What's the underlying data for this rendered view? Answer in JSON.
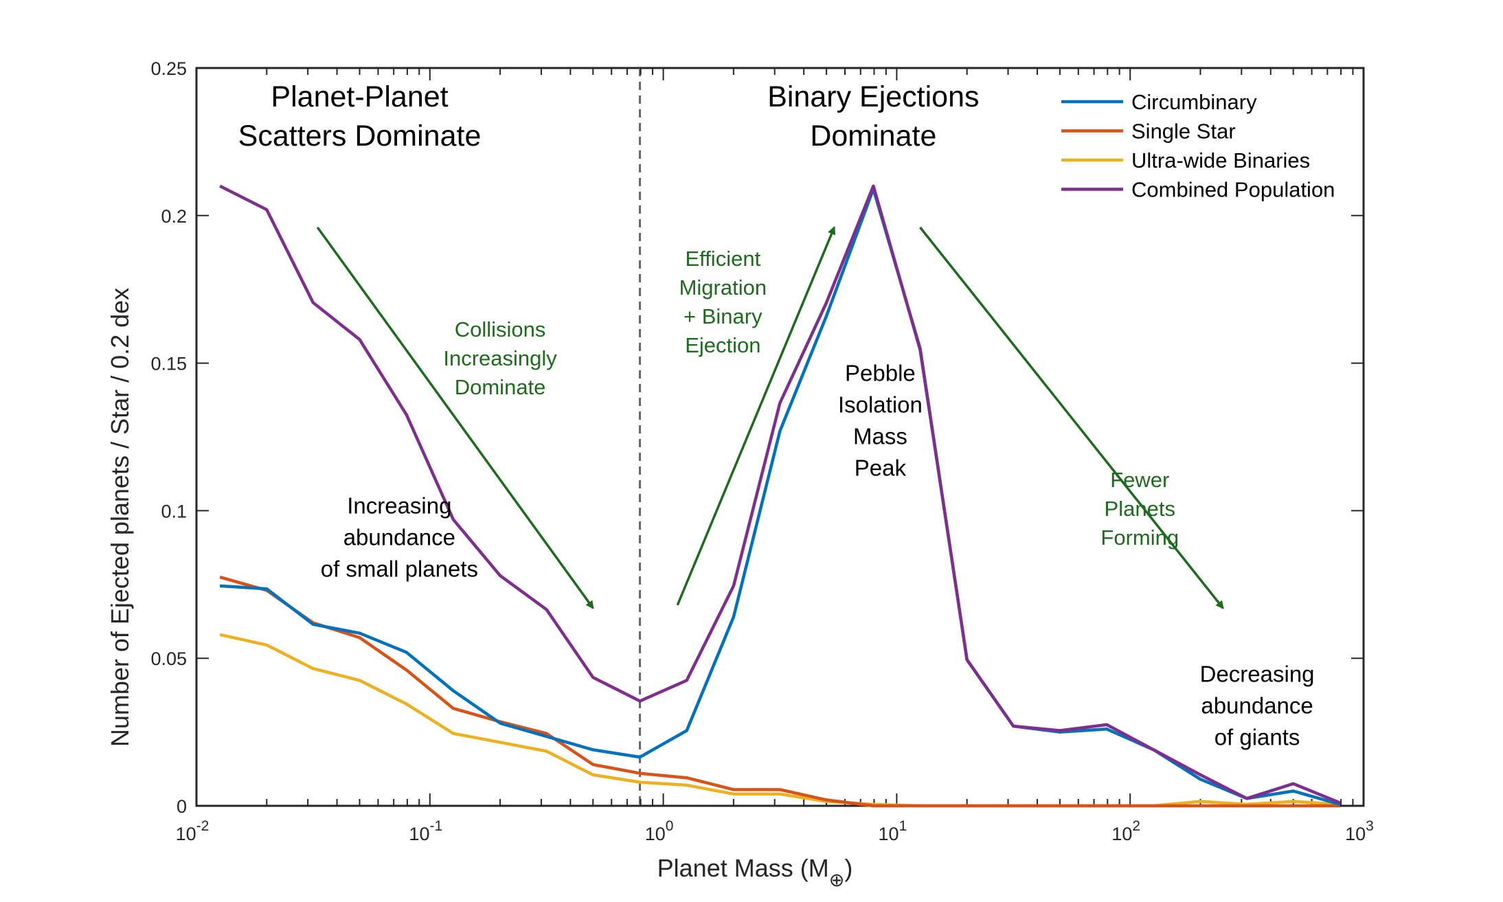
{
  "chart_data": {
    "type": "line",
    "xscale": "log",
    "xlim": [
      0.01,
      1000
    ],
    "ylim": [
      0,
      0.25
    ],
    "xlabel": "Planet Mass (M",
    "xlabel_subscript": "⊕",
    "xlabel_close": ")",
    "ylabel": "Number of Ejected planets / Star / 0.2 dex",
    "yticks": [
      {
        "value": 0,
        "label": "0"
      },
      {
        "value": 0.05,
        "label": "0.05"
      },
      {
        "value": 0.1,
        "label": "0.1"
      },
      {
        "value": 0.15,
        "label": "0.15"
      },
      {
        "value": 0.2,
        "label": "0.2"
      },
      {
        "value": 0.25,
        "label": "0.25"
      }
    ],
    "xticks": [
      {
        "value": 0.01,
        "base": "10",
        "exp": "-2"
      },
      {
        "value": 0.1,
        "base": "10",
        "exp": "-1"
      },
      {
        "value": 1,
        "base": "10",
        "exp": "0"
      },
      {
        "value": 10,
        "base": "10",
        "exp": "1"
      },
      {
        "value": 100,
        "base": "10",
        "exp": "2"
      },
      {
        "value": 1000,
        "base": "10",
        "exp": "3"
      }
    ],
    "x": [
      0.0126,
      0.02,
      0.0316,
      0.05,
      0.0794,
      0.126,
      0.2,
      0.316,
      0.5,
      0.794,
      1.26,
      2.0,
      3.16,
      5.0,
      7.94,
      12.6,
      20.0,
      31.6,
      50.0,
      79.4,
      126,
      200,
      316,
      500,
      794
    ],
    "series": [
      {
        "name": "Circumbinary",
        "color": "#0072BD",
        "values": [
          0.0745,
          0.0735,
          0.0615,
          0.0585,
          0.052,
          0.039,
          0.028,
          0.0235,
          0.019,
          0.0165,
          0.0255,
          0.064,
          0.127,
          0.166,
          0.209,
          0.155,
          0.0495,
          0.027,
          0.025,
          0.026,
          0.019,
          0.009,
          0.0025,
          0.005,
          0.0005
        ]
      },
      {
        "name": "Single Star",
        "color": "#D95319",
        "values": [
          0.0775,
          0.073,
          0.062,
          0.057,
          0.046,
          0.033,
          0.0285,
          0.0245,
          0.014,
          0.011,
          0.0095,
          0.0055,
          0.0055,
          0.002,
          0.0,
          0.0,
          0.0,
          0.0,
          0.0,
          0.0,
          0.0,
          0.0,
          0.0,
          0.0,
          0.0
        ]
      },
      {
        "name": "Ultra-wide Binaries",
        "color": "#EDB120",
        "values": [
          0.058,
          0.0545,
          0.0465,
          0.0425,
          0.0345,
          0.0245,
          0.0215,
          0.0185,
          0.0105,
          0.008,
          0.007,
          0.004,
          0.004,
          0.0015,
          0.0005,
          0.0,
          0.0,
          0.0,
          0.0,
          0.0,
          0.0,
          0.0015,
          0.0005,
          0.0015,
          0.0005
        ]
      },
      {
        "name": "Combined Population",
        "color": "#7E2F8E",
        "values": [
          0.21,
          0.202,
          0.1705,
          0.158,
          0.1325,
          0.097,
          0.078,
          0.0665,
          0.0435,
          0.0355,
          0.0425,
          0.0745,
          0.1365,
          0.1705,
          0.21,
          0.1545,
          0.0495,
          0.027,
          0.0255,
          0.0275,
          0.019,
          0.0105,
          0.0025,
          0.0075,
          0.001
        ]
      }
    ],
    "divider_x": 0.794,
    "legend_position": "top-right",
    "headings": [
      {
        "lines": [
          "Planet-Planet",
          "Scatters Dominate"
        ],
        "x": 0.05,
        "y": 0.237
      },
      {
        "lines": [
          "Binary Ejections",
          "Dominate"
        ],
        "x": 7.94,
        "y": 0.237
      }
    ],
    "annotations": [
      {
        "lines": [
          "Increasing",
          "abundance",
          "of small planets"
        ],
        "x": 0.074,
        "y": 0.099,
        "color": "#000000"
      },
      {
        "lines": [
          "Pebble",
          "Isolation",
          "Mass",
          "Peak"
        ],
        "x": 8.5,
        "y": 0.144,
        "color": "#000000"
      },
      {
        "lines": [
          "Decreasing",
          "abundance",
          "of giants"
        ],
        "x": 350,
        "y": 0.042,
        "color": "#000000"
      },
      {
        "lines": [
          "Collisions",
          "Increasingly",
          "Dominate"
        ],
        "x": 0.2,
        "y": 0.159,
        "color": "#1e6b1e"
      },
      {
        "lines": [
          "Efficient",
          "Migration",
          "+ Binary",
          "Ejection"
        ],
        "x": 1.8,
        "y": 0.183,
        "color": "#1e6b1e"
      },
      {
        "lines": [
          "Fewer",
          "Planets",
          "Forming"
        ],
        "x": 110,
        "y": 0.108,
        "color": "#1e6b1e"
      }
    ],
    "arrows": [
      {
        "from": [
          0.033,
          0.196
        ],
        "to": [
          0.5,
          0.067
        ]
      },
      {
        "from": [
          1.15,
          0.068
        ],
        "to": [
          5.4,
          0.196
        ]
      },
      {
        "from": [
          12.6,
          0.196
        ],
        "to": [
          250,
          0.067
        ]
      }
    ],
    "arrow_color": "#1e6b1e"
  }
}
